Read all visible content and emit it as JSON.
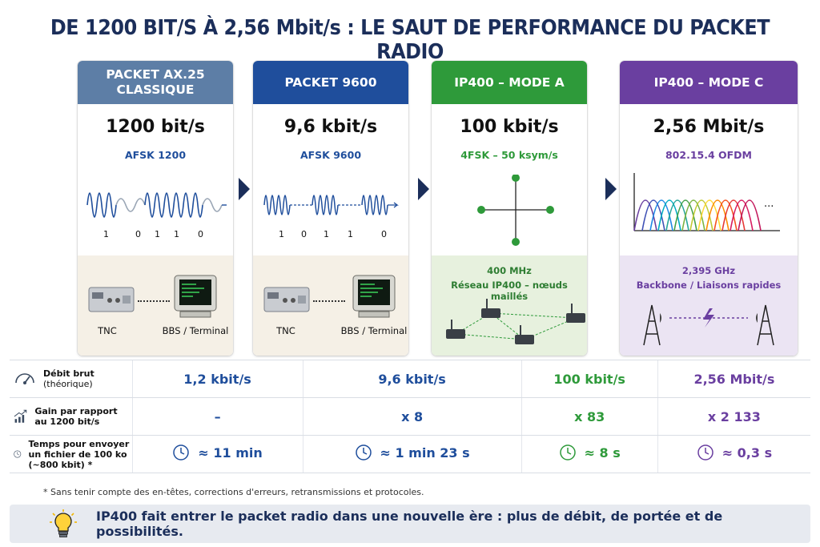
{
  "title": "DE 1200 BIT/S À 2,56 Mbit/s : LE SAUT DE PERFORMANCE DU PACKET RADIO",
  "colors": {
    "navy": "#1b2e5a",
    "slate": "#5d7ea6",
    "blue": "#1f4e9c",
    "green": "#2e9a3a",
    "purple": "#6a3fa0"
  },
  "cards": [
    {
      "header": "PACKET AX.25 CLASSIQUE",
      "rate": "1200 bit/s",
      "modulation": "AFSK 1200",
      "bits": [
        "1",
        "0",
        "1",
        "1",
        "0"
      ],
      "device_left": "TNC",
      "device_right": "BBS / Terminal"
    },
    {
      "header": "PACKET 9600",
      "rate": "9,6 kbit/s",
      "modulation": "AFSK 9600",
      "bits": [
        "1",
        "0",
        "1",
        "1",
        "0"
      ],
      "device_left": "TNC",
      "device_right": "BBS / Terminal"
    },
    {
      "header": "IP400 – MODE A",
      "rate": "100 kbit/s",
      "modulation": "4FSK – 50 ksym/s",
      "band": "400 MHz",
      "network": "Réseau IP400 – nœuds maillés"
    },
    {
      "header": "IP400 – MODE C",
      "rate": "2,56 Mbit/s",
      "modulation": "802.15.4 OFDM",
      "ellipsis": "...",
      "band": "2,395 GHz",
      "network": "Backbone / Liaisons rapides"
    }
  ],
  "table": {
    "rows": [
      {
        "label_bold": "Débit brut",
        "label_sub": "(théorique)",
        "icon": "gauge-icon",
        "values": [
          "1,2 kbit/s",
          "9,6 kbit/s",
          "100 kbit/s",
          "2,56 Mbit/s"
        ]
      },
      {
        "label_bold": "Gain par rapport au 1200 bit/s",
        "label_sub": "",
        "icon": "growth-chart-icon",
        "values": [
          "–",
          "x 8",
          "x 83",
          "x 2 133"
        ]
      },
      {
        "label_bold": "Temps pour envoyer un fichier de 100 ko (~800 kbit) *",
        "label_sub": "",
        "icon": "clock-icon",
        "values": [
          "≈ 11 min",
          "≈ 1 min 23 s",
          "≈ 8 s",
          "≈ 0,3 s"
        ]
      }
    ]
  },
  "footnote": "* Sans tenir compte des en-têtes, corrections d'erreurs, retransmissions et protocoles.",
  "banner": {
    "icon": "lightbulb-icon",
    "text": "IP400 fait entrer le packet radio dans une nouvelle ère : plus de débit, de portée et de possibilités."
  }
}
